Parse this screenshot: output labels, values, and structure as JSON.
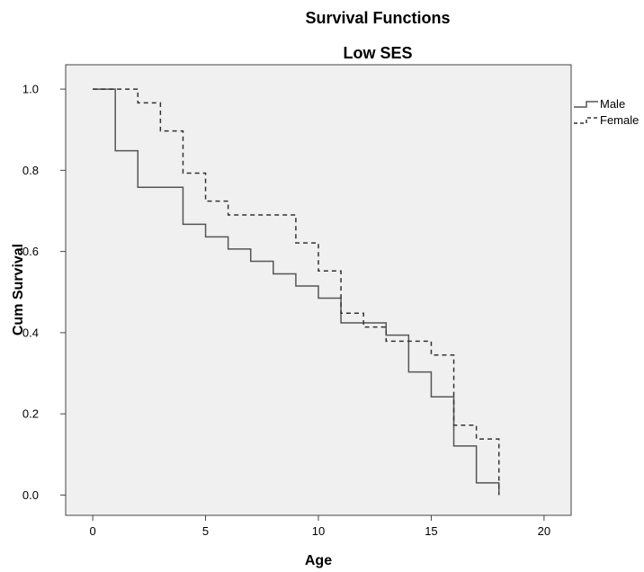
{
  "chart_data": {
    "type": "line",
    "step": true,
    "title": "Survival Functions",
    "subtitle": "Low SES",
    "xlabel": "Age",
    "ylabel": "Cum Survival",
    "xlim": [
      -1.2,
      21.2
    ],
    "ylim": [
      -0.05,
      1.06
    ],
    "xticks": [
      0,
      5,
      10,
      15,
      20
    ],
    "xtick_labels": [
      "0",
      "5",
      "10",
      "15",
      "20"
    ],
    "yticks": [
      0.0,
      0.2,
      0.4,
      0.6,
      0.8,
      1.0
    ],
    "ytick_labels": [
      "0.0",
      "0.2",
      "0.4",
      "0.6",
      "0.8",
      "1.0"
    ],
    "grid": false,
    "legend_position": "right",
    "plot_background": "#f0f0f0",
    "series": [
      {
        "name": "Male",
        "style": "solid",
        "color": "#555555",
        "x": [
          0,
          1,
          2,
          4,
          5,
          6,
          7,
          8,
          9,
          10,
          11,
          13,
          14,
          15,
          16,
          17,
          18,
          18
        ],
        "y": [
          1.0,
          0.848,
          0.758,
          0.667,
          0.636,
          0.606,
          0.576,
          0.545,
          0.515,
          0.485,
          0.424,
          0.394,
          0.303,
          0.242,
          0.121,
          0.03,
          0.03,
          0.0
        ]
      },
      {
        "name": "Female",
        "style": "dashed",
        "color": "#333333",
        "x": [
          0,
          2,
          3,
          4,
          5,
          6,
          9,
          10,
          11,
          12,
          13,
          15,
          16,
          17,
          18,
          18
        ],
        "y": [
          1.0,
          0.966,
          0.897,
          0.793,
          0.724,
          0.69,
          0.621,
          0.552,
          0.448,
          0.414,
          0.379,
          0.345,
          0.172,
          0.138,
          0.138,
          0.0
        ]
      }
    ]
  }
}
